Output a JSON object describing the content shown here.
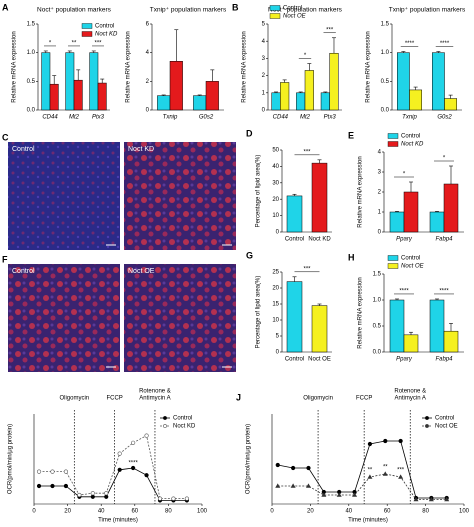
{
  "chart_data": [
    {
      "type": "bar",
      "panel": "A",
      "title": "Noct⁺ population markers",
      "ylabel": "Relative mRNA expression",
      "italic": true,
      "categories": [
        "CD44",
        "Mt2",
        "Ptx3"
      ],
      "ylim": [
        0,
        1.5
      ],
      "yticks": [
        {
          "value": 0,
          "label": "0.0"
        },
        {
          "value": 0.5,
          "label": "0.5"
        },
        {
          "value": 1,
          "label": "1.0"
        },
        {
          "value": 1.5,
          "label": "1.5"
        }
      ],
      "series": [
        {
          "name": "Control",
          "color": "#1fd4e8",
          "values": [
            1,
            1,
            1
          ],
          "errors": [
            0.03,
            0.03,
            0.03
          ]
        },
        {
          "name": "Noct KD",
          "color": "#e41a1c",
          "values": [
            0.45,
            0.52,
            0.47
          ],
          "errors": [
            0.15,
            0.18,
            0.07
          ]
        }
      ],
      "annotations": [
        "*",
        "**",
        "***"
      ],
      "legend": "top-right"
    },
    {
      "type": "bar",
      "title": "Txnip⁺ population markers",
      "ylabel": "Relative mRNA expression",
      "italic": true,
      "categories": [
        "Txnip",
        "G0s2"
      ],
      "ylim": [
        0,
        6
      ],
      "yticks": [
        0,
        2,
        4,
        6
      ],
      "series": [
        {
          "name": "Control",
          "color": "#1fd4e8",
          "values": [
            1,
            1
          ],
          "errors": [
            0.05,
            0.05
          ]
        },
        {
          "name": "Noct KD",
          "color": "#e41a1c",
          "values": [
            3.4,
            2.0
          ],
          "errors": [
            2.2,
            0.8
          ]
        }
      ]
    },
    {
      "type": "bar",
      "panel": "B",
      "title": "Noct⁺ population markers",
      "ylabel": "Relative mRNA expression",
      "italic": true,
      "categories": [
        "CD44",
        "Mt2",
        "Ptx3"
      ],
      "ylim": [
        0,
        5
      ],
      "yticks": [
        0,
        1,
        2,
        3,
        4,
        5
      ],
      "series": [
        {
          "name": "Control",
          "color": "#1fd4e8",
          "values": [
            1,
            1,
            1
          ],
          "errors": [
            0.05,
            0.05,
            0.05
          ]
        },
        {
          "name": "Noct OE",
          "color": "#f5f020",
          "values": [
            1.6,
            2.3,
            3.3
          ],
          "errors": [
            0.15,
            0.4,
            0.9
          ]
        }
      ],
      "annotations": [
        null,
        "*",
        "***"
      ],
      "legend": "top-left"
    },
    {
      "type": "bar",
      "title": "Txnip⁺ population markers",
      "ylabel": "Relative mRNA expression",
      "italic": true,
      "categories": [
        "Txnip",
        "G0s2"
      ],
      "ylim": [
        0,
        1.5
      ],
      "yticks": [
        {
          "value": 0,
          "label": "0.0"
        },
        {
          "value": 0.5,
          "label": "0.5"
        },
        {
          "value": 1,
          "label": "1.0"
        },
        {
          "value": 1.5,
          "label": "1.5"
        }
      ],
      "series": [
        {
          "name": "Control",
          "color": "#1fd4e8",
          "values": [
            1,
            1
          ],
          "errors": [
            0.02,
            0.02
          ]
        },
        {
          "name": "Noct OE",
          "color": "#f5f020",
          "values": [
            0.35,
            0.2
          ],
          "errors": [
            0.05,
            0.06
          ]
        }
      ],
      "annotations": [
        "****",
        "****"
      ]
    },
    {
      "type": "image",
      "panel": "C",
      "labels": [
        "Control",
        "Noct KD"
      ]
    },
    {
      "type": "bar",
      "panel": "D",
      "ylabel": "Percentage of lipid area(%)",
      "categories": [
        "Control",
        "Noct KD"
      ],
      "values": [
        22,
        42
      ],
      "errors": [
        1,
        2
      ],
      "colors": [
        "#1fd4e8",
        "#e41a1c"
      ],
      "ylim": [
        0,
        50
      ],
      "yticks": [
        0,
        10,
        20,
        30,
        40,
        50
      ],
      "annotation": "***"
    },
    {
      "type": "bar",
      "panel": "E",
      "ylabel": "Relative mRNA expression",
      "italic": true,
      "categories": [
        "Pparγ",
        "Fabp4"
      ],
      "ylim": [
        0,
        4
      ],
      "yticks": [
        0,
        1,
        2,
        3,
        4
      ],
      "series": [
        {
          "name": "Control",
          "color": "#1fd4e8",
          "values": [
            1,
            1
          ],
          "errors": [
            0.03,
            0.03
          ]
        },
        {
          "name": "Noct KD",
          "color": "#e41a1c",
          "values": [
            2.0,
            2.4
          ],
          "errors": [
            0.5,
            0.9
          ]
        }
      ],
      "annotations": [
        "*",
        "*"
      ],
      "legend": "top"
    },
    {
      "type": "image",
      "panel": "F",
      "labels": [
        "Control",
        "Noct OE"
      ]
    },
    {
      "type": "bar",
      "panel": "G",
      "ylabel": "Percentage of lipid area(%)",
      "categories": [
        "Control",
        "Noct OE"
      ],
      "values": [
        22,
        14.5
      ],
      "errors": [
        1.5,
        0.5
      ],
      "colors": [
        "#1fd4e8",
        "#f5f020"
      ],
      "ylim": [
        0,
        25
      ],
      "yticks": [
        0,
        5,
        10,
        15,
        20,
        25
      ],
      "annotation": "***"
    },
    {
      "type": "bar",
      "panel": "H",
      "ylabel": "Relative mRNA expression",
      "italic": true,
      "categories": [
        "Pparγ",
        "Fabp4"
      ],
      "ylim": [
        0,
        1.5
      ],
      "yticks": [
        {
          "value": 0,
          "label": "0.0"
        },
        {
          "value": 0.5,
          "label": "0.5"
        },
        {
          "value": 1,
          "label": "1.0"
        },
        {
          "value": 1.5,
          "label": "1.5"
        }
      ],
      "series": [
        {
          "name": "Control",
          "color": "#1fd4e8",
          "values": [
            1,
            1
          ],
          "errors": [
            0.02,
            0.02
          ]
        },
        {
          "name": "Noct OE",
          "color": "#f5f020",
          "values": [
            0.33,
            0.4
          ],
          "errors": [
            0.05,
            0.15
          ]
        }
      ],
      "annotations": [
        "****",
        "****"
      ],
      "legend": "top"
    },
    {
      "type": "line",
      "panel": "I",
      "xlabel": "Time (minutes)",
      "ylabel": "OCR(pmol/min/μg protein)",
      "x": [
        3,
        11,
        19,
        27,
        35,
        43,
        51,
        59,
        67,
        75,
        83,
        91
      ],
      "xlim": [
        0,
        100
      ],
      "xticks": [
        0,
        20,
        40,
        60,
        80,
        100
      ],
      "ylim": [
        0,
        25
      ],
      "series": [
        {
          "name": "Control",
          "color": "#000000",
          "marker": "filled",
          "dashed": false,
          "values": [
            5,
            5,
            5,
            2,
            2,
            2,
            9.5,
            10,
            8,
            1,
            1,
            1
          ]
        },
        {
          "name": "Noct KD",
          "color": "#555555",
          "marker": "open",
          "dashed": true,
          "values": [
            9,
            9,
            9,
            2.5,
            3,
            3,
            14,
            17,
            19,
            1.5,
            1.5,
            1.5
          ]
        }
      ],
      "events": [
        {
          "x": 24,
          "label": [
            "Oligomycin"
          ]
        },
        {
          "x": 48,
          "label": [
            "FCCP"
          ]
        },
        {
          "x": 72,
          "label": [
            "Rotenone &",
            "Antimycin A"
          ]
        }
      ],
      "annotations": [
        "****"
      ]
    },
    {
      "type": "line",
      "panel": "J",
      "xlabel": "Time (minutes)",
      "ylabel": "OCR(pmol/min/μg protein)",
      "x": [
        3,
        11,
        19,
        27,
        35,
        43,
        51,
        59,
        67,
        75,
        83,
        91
      ],
      "xlim": [
        0,
        100
      ],
      "xticks": [
        0,
        20,
        40,
        60,
        80,
        100
      ],
      "ylim": [
        0,
        30
      ],
      "series": [
        {
          "name": "Control",
          "color": "#000000",
          "marker": "filled",
          "dashed": false,
          "values": [
            13,
            12,
            12,
            4,
            4,
            4,
            20,
            21,
            21,
            2,
            2,
            2
          ]
        },
        {
          "name": "Noct OE",
          "color": "#333333",
          "marker": "triangle",
          "dashed": true,
          "values": [
            6,
            6,
            6,
            3,
            3,
            3,
            9,
            10,
            9,
            1.5,
            1.5,
            1.5
          ]
        }
      ],
      "events": [
        {
          "x": 24,
          "label": [
            "Oligomycin"
          ]
        },
        {
          "x": 48,
          "label": [
            "FCCP"
          ]
        },
        {
          "x": 72,
          "label": [
            "Rotenone &",
            "Antimycin A"
          ]
        }
      ],
      "annotations": [
        "**",
        "**",
        "***"
      ]
    }
  ]
}
